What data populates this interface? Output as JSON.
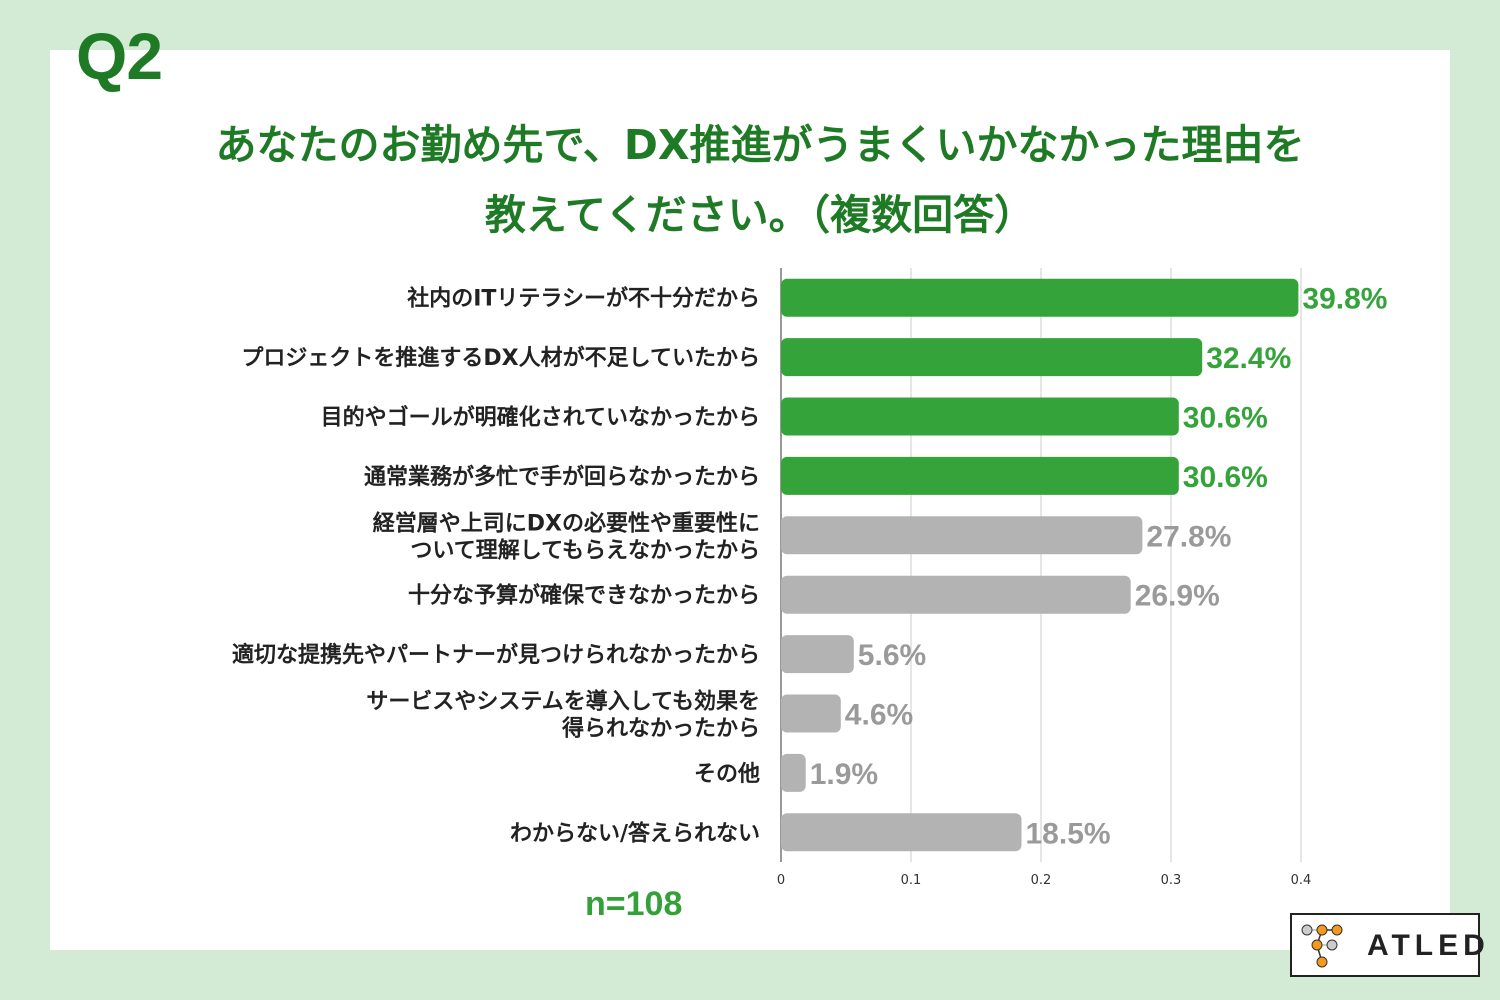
{
  "question_number": "Q2",
  "title": "あなたのお勤め先で、DX推進がうまくいかなかった理由を\n教えてください。（複数回答）",
  "sample_size": "n=108",
  "logo_text": "ATLED",
  "colors": {
    "highlight": "#34a33a",
    "other": "#b3b3b3",
    "highlight_label": "#34a33a",
    "other_label": "#9a9a9a",
    "background": "#d3ead5"
  },
  "chart_data": {
    "type": "bar",
    "orientation": "horizontal",
    "categories": [
      "社内のITリテラシーが不十分だから",
      "プロジェクトを推進するDX人材が不足していたから",
      "目的やゴールが明確化されていなかったから",
      "通常業務が多忙で手が回らなかったから",
      "経営層や上司にDXの必要性や重要性に\nついて理解してもらえなかったから",
      "十分な予算が確保できなかったから",
      "適切な提携先やパートナーが見つけられなかったから",
      "サービスやシステムを導入しても効果を\n得られなかったから",
      "その他",
      "わからない/答えられない"
    ],
    "values": [
      0.398,
      0.324,
      0.306,
      0.306,
      0.278,
      0.269,
      0.056,
      0.046,
      0.019,
      0.185
    ],
    "data_labels": [
      "39.8%",
      "32.4%",
      "30.6%",
      "30.6%",
      "27.8%",
      "26.9%",
      "5.6%",
      "4.6%",
      "1.9%",
      "18.5%"
    ],
    "highlighted": [
      true,
      true,
      true,
      true,
      false,
      false,
      false,
      false,
      false,
      false
    ],
    "xlim": [
      0,
      0.4
    ],
    "xticks": [
      "0",
      "0.1",
      "0.2",
      "0.3",
      "0.4"
    ],
    "grid": true
  }
}
